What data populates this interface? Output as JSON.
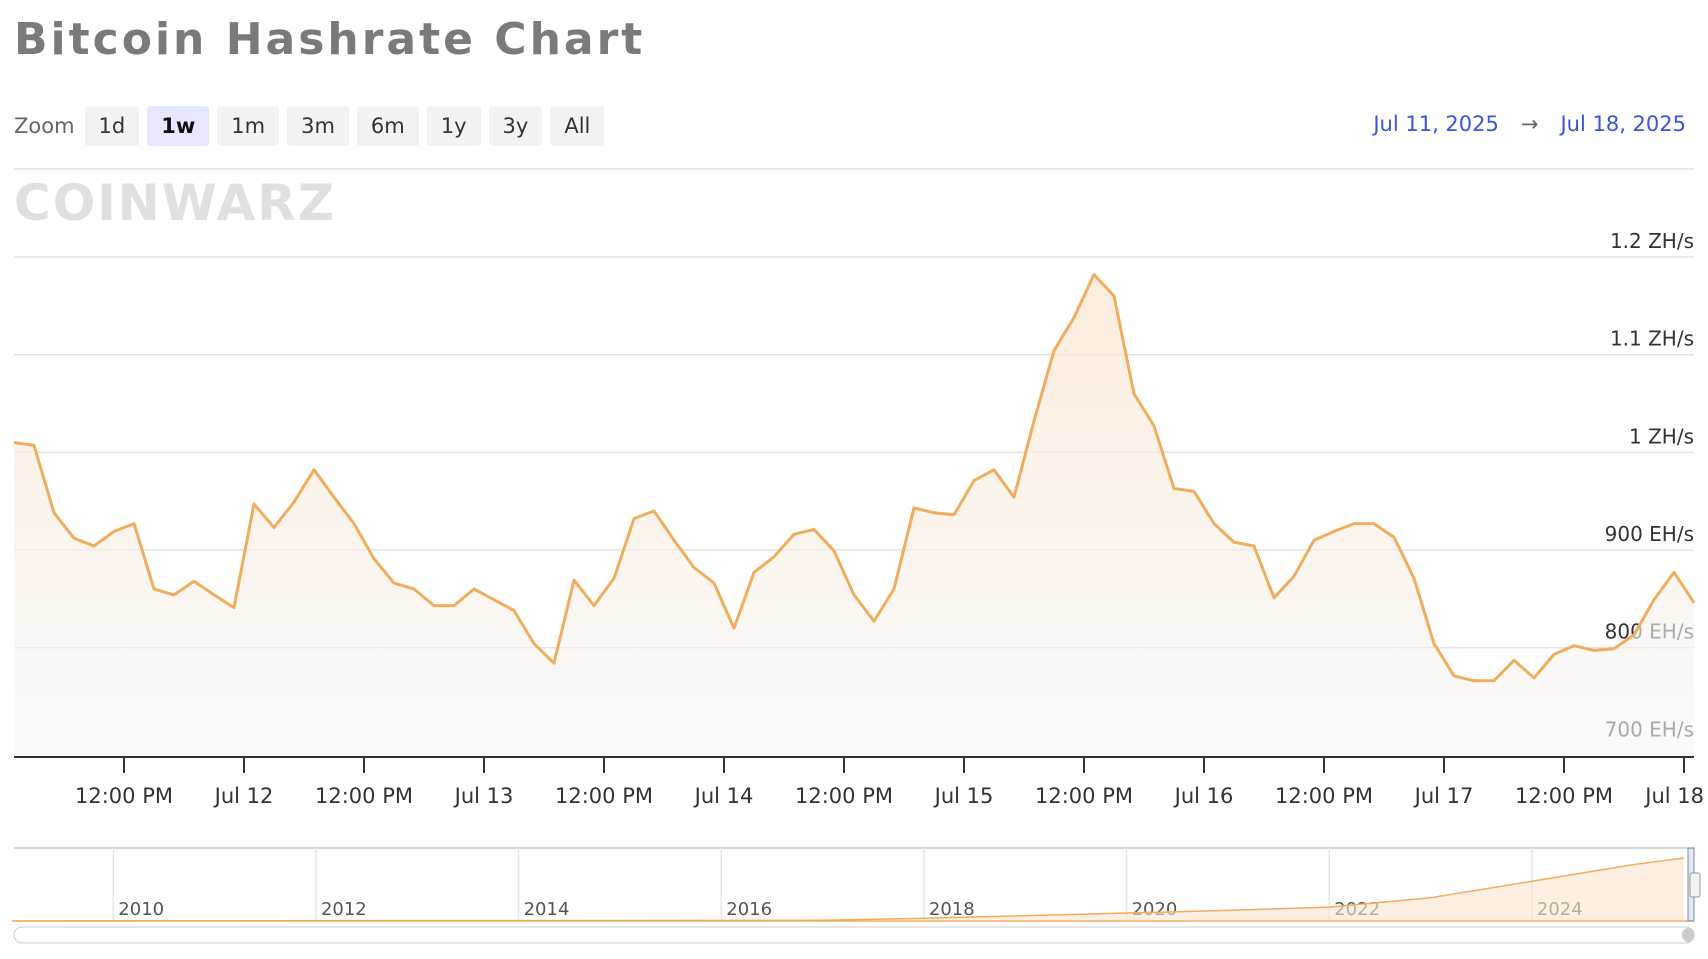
{
  "chart_data": {
    "type": "line",
    "title": "Bitcoin Hashrate Chart",
    "zoom_label": "Zoom",
    "zoom_buttons": [
      "1d",
      "1w",
      "1m",
      "3m",
      "6m",
      "1y",
      "3y",
      "All"
    ],
    "active_zoom": "1w",
    "range_start": "Jul 11, 2025",
    "range_separator": "→",
    "range_end": "Jul 18, 2025",
    "watermark": "COINWARZ",
    "color": "#f0ad5e",
    "grid": true,
    "x": [
      1,
      3,
      5,
      7,
      9,
      11,
      13,
      15,
      17,
      19,
      21,
      23,
      25,
      27,
      29,
      31,
      33,
      35,
      37,
      39,
      41,
      43,
      45,
      47,
      49,
      51,
      53,
      55,
      57,
      59,
      61,
      63,
      65,
      67,
      69,
      71,
      73,
      75,
      77,
      79,
      81,
      83,
      85,
      87,
      89,
      91,
      93,
      95,
      97,
      99,
      101,
      103,
      105,
      107,
      109,
      111,
      113,
      115,
      117,
      119,
      121,
      123,
      125,
      127,
      129,
      131,
      133,
      135,
      137,
      139,
      141,
      143,
      145,
      147,
      149,
      151,
      153,
      155,
      157,
      159,
      161,
      163,
      165,
      167,
      169
    ],
    "values": [
      1010,
      1007,
      938,
      912,
      904,
      919,
      927,
      860,
      854,
      868,
      854,
      841,
      947,
      923,
      949,
      982,
      954,
      927,
      891,
      866,
      860,
      843,
      843,
      860,
      849,
      838,
      804,
      784,
      869,
      843,
      871,
      932,
      940,
      910,
      882,
      866,
      820,
      877,
      893,
      916,
      921,
      899,
      854,
      827,
      860,
      943,
      938,
      936,
      971,
      982,
      954,
      1032,
      1104,
      1138,
      1182,
      1160,
      1060,
      1027,
      963,
      960,
      927,
      908,
      904,
      851,
      873,
      910,
      919,
      927,
      927,
      913,
      871,
      804,
      771,
      766,
      766,
      787,
      769,
      793,
      802,
      797,
      799,
      813,
      849,
      877,
      846
    ],
    "xlim": [
      1,
      169
    ],
    "xticks": [
      {
        "value": 12,
        "label": "12:00 PM"
      },
      {
        "value": 24,
        "label": "Jul 12"
      },
      {
        "value": 36,
        "label": "12:00 PM"
      },
      {
        "value": 48,
        "label": "Jul 13"
      },
      {
        "value": 60,
        "label": "12:00 PM"
      },
      {
        "value": 72,
        "label": "Jul 14"
      },
      {
        "value": 84,
        "label": "12:00 PM"
      },
      {
        "value": 96,
        "label": "Jul 15"
      },
      {
        "value": 108,
        "label": "12:00 PM"
      },
      {
        "value": 120,
        "label": "Jul 16"
      },
      {
        "value": 132,
        "label": "12:00 PM"
      },
      {
        "value": 144,
        "label": "Jul 17"
      },
      {
        "value": 156,
        "label": "12:00 PM"
      },
      {
        "value": 168,
        "label": "Jul 18"
      }
    ],
    "ylim": [
      688,
      1290
    ],
    "yticks": [
      {
        "value": 700,
        "label": "700 EH/s"
      },
      {
        "value": 800,
        "label": "800 EH/s"
      },
      {
        "value": 900,
        "label": "900 EH/s"
      },
      {
        "value": 1000,
        "label": "1 ZH/s"
      },
      {
        "value": 1100,
        "label": "1.1 ZH/s"
      },
      {
        "value": 1200,
        "label": "1.2 ZH/s"
      }
    ],
    "navigator": {
      "x": [
        2009,
        2017,
        2018,
        2019,
        2020,
        2021,
        2022,
        2023,
        2024,
        2025,
        2025.5
      ],
      "values": [
        0,
        10,
        40,
        80,
        120,
        160,
        210,
        350,
        600,
        850,
        950
      ],
      "xlim": [
        2009.02,
        2025.6
      ],
      "ylim": [
        0,
        1100
      ],
      "xticks": [
        2010,
        2012,
        2014,
        2016,
        2018,
        2020,
        2022,
        2024
      ]
    }
  }
}
